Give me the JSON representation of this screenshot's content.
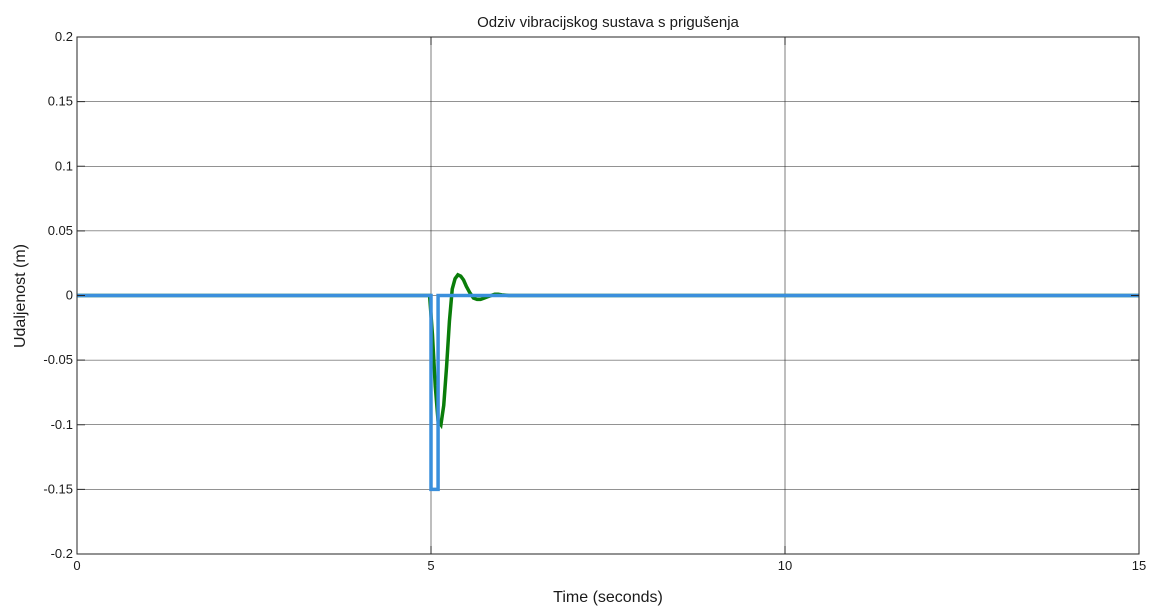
{
  "chart_data": {
    "type": "line",
    "title": "Odziv vibracijskog sustava s prigušenja",
    "xlabel": "Time (seconds)",
    "ylabel": "Udaljenost (m)",
    "xlim": [
      0,
      15
    ],
    "ylim": [
      -0.2,
      0.2
    ],
    "xticks": [
      0,
      5,
      10,
      15
    ],
    "yticks": [
      -0.2,
      -0.15,
      -0.1,
      -0.05,
      0,
      0.05,
      0.1,
      0.15,
      0.2
    ],
    "xtick_labels": [
      "0",
      "5",
      "10",
      "15"
    ],
    "ytick_labels": [
      "-0.2",
      "-0.15",
      "-0.1",
      "-0.05",
      "0",
      "0.05",
      "0.1",
      "0.15",
      "0.2"
    ],
    "grid": true,
    "series": [
      {
        "color": "#0a7d0a",
        "x": [
          0,
          4.98,
          5.02,
          5.06,
          5.1,
          5.14,
          5.18,
          5.22,
          5.26,
          5.3,
          5.34,
          5.38,
          5.42,
          5.46,
          5.5,
          5.55,
          5.6,
          5.65,
          5.7,
          5.75,
          5.8,
          5.85,
          5.9,
          5.95,
          6.0,
          6.1,
          15
        ],
        "y": [
          0,
          0,
          -0.03,
          -0.07,
          -0.097,
          -0.1,
          -0.085,
          -0.055,
          -0.02,
          0.005,
          0.013,
          0.016,
          0.015,
          0.012,
          0.007,
          0.002,
          -0.002,
          -0.003,
          -0.003,
          -0.002,
          -0.001,
          0,
          0.001,
          0.001,
          0.0005,
          0,
          0
        ]
      },
      {
        "color": "#3a8fdc",
        "x": [
          0,
          5.0,
          5.0,
          5.1,
          5.1,
          15
        ],
        "y": [
          0,
          0,
          -0.15,
          -0.15,
          0,
          0
        ]
      }
    ]
  }
}
